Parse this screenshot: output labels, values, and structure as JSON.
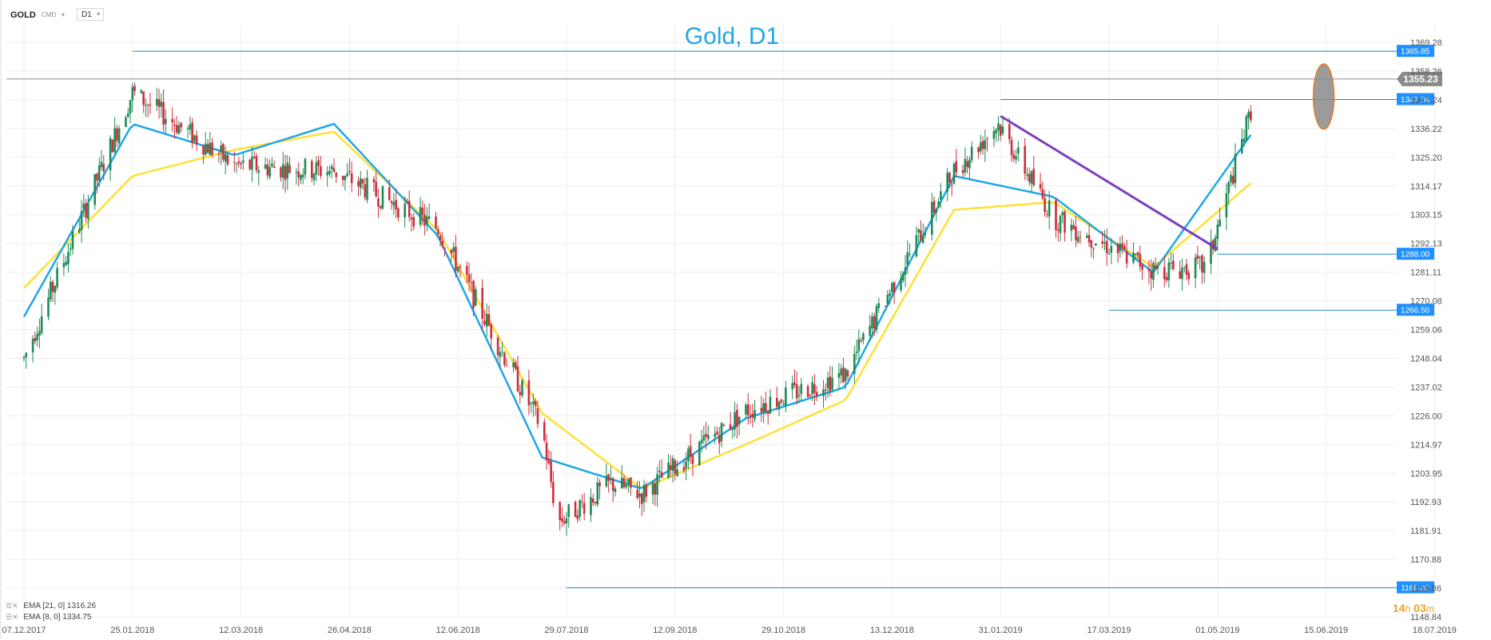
{
  "header": {
    "symbol": "GOLD",
    "instrument_type": "CMD",
    "timeframe": "D1"
  },
  "legend": [
    {
      "label": "EMA",
      "params": "[21, 0]",
      "value": "1316.26",
      "color": "#ffe033"
    },
    {
      "label": "EMA",
      "params": "[8, 0]",
      "value": "1334.75",
      "color": "#1ea7e8"
    }
  ],
  "timer": {
    "hours": "14",
    "h_unit": "h",
    "minutes": "03",
    "m_unit": "m"
  },
  "colors": {
    "up": "#1f8a56",
    "down": "#cc2f3c",
    "ema_fast": "#1ea7e8",
    "ema_slow": "#ffe033",
    "trendline": "#7b3fbe",
    "hline": "#1e88c9",
    "label_bg": "#1e90ff",
    "current_bg": "#8a8a8a",
    "highlight_fill": "#8a8a8a",
    "highlight_stroke": "#e67e22"
  },
  "chart_data": {
    "type": "candlestick",
    "title": "Gold, D1",
    "y_axis_ticks": [
      "1369.28",
      "1358.26",
      "1347.24",
      "1336.22",
      "1325.20",
      "1314.17",
      "1303.15",
      "1292.13",
      "1281.11",
      "1270.08",
      "1259.06",
      "1248.04",
      "1237.02",
      "1226.00",
      "1214.97",
      "1203.95",
      "1192.93",
      "1181.91",
      "1170.88",
      "1159.86",
      "1148.84"
    ],
    "ylim": [
      1148.84,
      1369.28
    ],
    "x_axis_ticks": [
      "07.12.2017",
      "25.01.2018",
      "12.03.2018",
      "26.04.2018",
      "12.06.2018",
      "29.07.2018",
      "12.09.2018",
      "29.10.2018",
      "13.12.2018",
      "31.01.2019",
      "17.03.2019",
      "01.05.2019",
      "15.06.2019",
      "18.07.2019"
    ],
    "current_price": "1355.23",
    "levels": [
      {
        "value": 1365.85,
        "label": "1365.85",
        "from": "25.01.2018"
      },
      {
        "value": 1347.34,
        "label": "1347.34",
        "from": "31.01.2019"
      },
      {
        "value": 1288.0,
        "label": "1288.00",
        "from": "01.05.2019"
      },
      {
        "value": 1266.5,
        "label": "1266.50",
        "from": "17.03.2019"
      },
      {
        "value": 1160.0,
        "label": "1160.00",
        "from": "29.07.2018"
      }
    ],
    "trendline": [
      {
        "date": "31.01.2019",
        "price": 1341
      },
      {
        "date": "01.05.2019",
        "price": 1290
      }
    ],
    "highlight": {
      "date": "15.06.2019",
      "price_low": 1336,
      "price_high": 1361
    },
    "price_path": [
      [
        "07.12.2017",
        1248
      ],
      [
        "25.01.2018",
        1350
      ],
      [
        "12.03.2018",
        1322
      ],
      [
        "26.04.2018",
        1320
      ],
      [
        "12.06.2018",
        1298
      ],
      [
        "29.07.2018",
        1221
      ],
      [
        "05.08.2018",
        1185
      ],
      [
        "29.08.2018",
        1200
      ],
      [
        "12.09.2018",
        1196
      ],
      [
        "29.10.2018",
        1228
      ],
      [
        "13.12.2018",
        1242
      ],
      [
        "31.01.2019",
        1320
      ],
      [
        "20.02.2019",
        1338
      ],
      [
        "17.03.2019",
        1302
      ],
      [
        "01.05.2019",
        1282
      ],
      [
        "25.05.2019",
        1283
      ],
      [
        "15.06.2019",
        1346
      ]
    ],
    "ema_21_path": [
      [
        "07.12.2017",
        1275
      ],
      [
        "25.01.2018",
        1318
      ],
      [
        "12.03.2018",
        1328
      ],
      [
        "26.04.2018",
        1335
      ],
      [
        "12.06.2018",
        1297
      ],
      [
        "29.07.2018",
        1227
      ],
      [
        "12.09.2018",
        1198
      ],
      [
        "29.10.2018",
        1215
      ],
      [
        "13.12.2018",
        1232
      ],
      [
        "31.01.2019",
        1305
      ],
      [
        "17.03.2019",
        1308
      ],
      [
        "01.05.2019",
        1283
      ],
      [
        "15.06.2019",
        1316
      ]
    ],
    "ema_8_path": [
      [
        "07.12.2017",
        1264
      ],
      [
        "25.01.2018",
        1338
      ],
      [
        "12.03.2018",
        1326
      ],
      [
        "26.04.2018",
        1338
      ],
      [
        "12.06.2018",
        1295
      ],
      [
        "29.07.2018",
        1210
      ],
      [
        "12.09.2018",
        1198
      ],
      [
        "29.10.2018",
        1225
      ],
      [
        "13.12.2018",
        1237
      ],
      [
        "31.01.2019",
        1318
      ],
      [
        "17.03.2019",
        1310
      ],
      [
        "01.05.2019",
        1281
      ],
      [
        "15.06.2019",
        1335
      ]
    ]
  }
}
